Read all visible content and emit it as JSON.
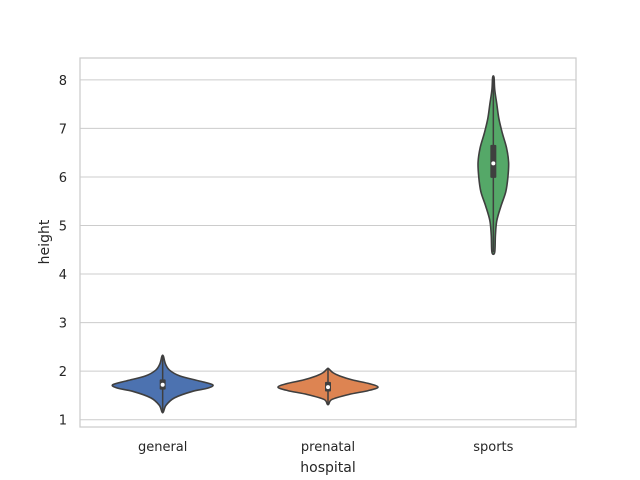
{
  "chart_data": {
    "type": "violin",
    "xlabel": "hospital",
    "ylabel": "height",
    "categories": [
      "general",
      "prenatal",
      "sports"
    ],
    "ylim": [
      0.85,
      8.45
    ],
    "yticks": [
      1,
      2,
      3,
      4,
      5,
      6,
      7,
      8
    ],
    "grid": "horizontal",
    "colors": [
      "#4c72b0",
      "#dd8452",
      "#55a868"
    ],
    "violins": [
      {
        "category": "general",
        "min": 1.16,
        "q1": 1.62,
        "median": 1.72,
        "q3": 1.83,
        "max": 2.31,
        "profile": [
          [
            1.16,
            0.01
          ],
          [
            1.3,
            0.05
          ],
          [
            1.45,
            0.17
          ],
          [
            1.58,
            0.42
          ],
          [
            1.65,
            0.65
          ],
          [
            1.72,
            0.72
          ],
          [
            1.8,
            0.52
          ],
          [
            1.9,
            0.25
          ],
          [
            2.02,
            0.1
          ],
          [
            2.15,
            0.04
          ],
          [
            2.31,
            0.01
          ]
        ]
      },
      {
        "category": "prenatal",
        "min": 1.32,
        "q1": 1.58,
        "median": 1.67,
        "q3": 1.78,
        "max": 2.05,
        "profile": [
          [
            1.32,
            0.01
          ],
          [
            1.42,
            0.06
          ],
          [
            1.52,
            0.3
          ],
          [
            1.6,
            0.58
          ],
          [
            1.67,
            0.72
          ],
          [
            1.74,
            0.6
          ],
          [
            1.82,
            0.35
          ],
          [
            1.9,
            0.17
          ],
          [
            1.97,
            0.07
          ],
          [
            2.05,
            0.01
          ]
        ]
      },
      {
        "category": "sports",
        "min": 4.45,
        "q1": 5.98,
        "median": 6.28,
        "q3": 6.66,
        "max": 8.05,
        "profile": [
          [
            4.45,
            0.02
          ],
          [
            4.8,
            0.03
          ],
          [
            5.1,
            0.05
          ],
          [
            5.4,
            0.11
          ],
          [
            5.7,
            0.18
          ],
          [
            6.0,
            0.21
          ],
          [
            6.3,
            0.22
          ],
          [
            6.6,
            0.19
          ],
          [
            6.9,
            0.13
          ],
          [
            7.2,
            0.08
          ],
          [
            7.5,
            0.05
          ],
          [
            7.8,
            0.02
          ],
          [
            8.05,
            0.01
          ]
        ]
      }
    ]
  }
}
